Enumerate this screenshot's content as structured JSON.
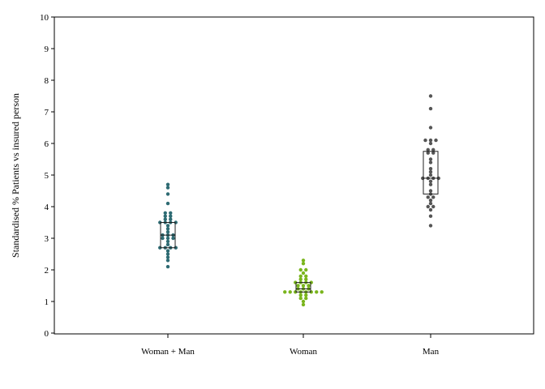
{
  "chart_data": {
    "type": "scatter",
    "subtype": "dot-strip with box",
    "title": "",
    "xlabel": "",
    "ylabel": "Standardised % Patients vs insured person",
    "ylim": [
      0,
      10
    ],
    "yticks": [
      0,
      1,
      2,
      3,
      4,
      5,
      6,
      7,
      8,
      9,
      10
    ],
    "grid": false,
    "legend": "none",
    "categories": [
      "Woman + Man",
      "Woman",
      "Man"
    ],
    "series": [
      {
        "color": "#2e6b73",
        "values": [
          4.7,
          4.6,
          4.4,
          4.1,
          3.8,
          3.8,
          3.7,
          3.7,
          3.6,
          3.6,
          3.5,
          3.5,
          3.5,
          3.5,
          3.4,
          3.3,
          3.2,
          3.1,
          3.1,
          3.1,
          3.0,
          3.0,
          3.0,
          2.9,
          2.8,
          2.7,
          2.7,
          2.7,
          2.7,
          2.6,
          2.5,
          2.4,
          2.3,
          2.1
        ],
        "box": {
          "q1": 2.7,
          "median": 3.1,
          "q3": 3.5
        }
      },
      {
        "color": "#7ab51d",
        "values": [
          2.3,
          2.2,
          2.0,
          2.0,
          1.9,
          1.8,
          1.8,
          1.7,
          1.7,
          1.6,
          1.6,
          1.6,
          1.6,
          1.5,
          1.5,
          1.5,
          1.4,
          1.4,
          1.4,
          1.3,
          1.3,
          1.3,
          1.3,
          1.3,
          1.3,
          1.3,
          1.3,
          1.2,
          1.2,
          1.1,
          1.1,
          1.0,
          0.9
        ],
        "box": {
          "q1": 1.3,
          "median": 1.4,
          "q3": 1.6
        }
      },
      {
        "color": "#555555",
        "values": [
          7.5,
          7.1,
          6.5,
          6.1,
          6.1,
          6.1,
          6.0,
          5.8,
          5.8,
          5.7,
          5.7,
          5.5,
          5.4,
          5.2,
          5.1,
          5.0,
          4.9,
          4.9,
          4.9,
          4.9,
          4.8,
          4.7,
          4.5,
          4.4,
          4.3,
          4.3,
          4.2,
          4.1,
          4.0,
          4.0,
          3.9,
          3.7,
          3.4
        ],
        "box": {
          "q1": 4.4,
          "median": 4.9,
          "q3": 5.75
        }
      }
    ]
  }
}
